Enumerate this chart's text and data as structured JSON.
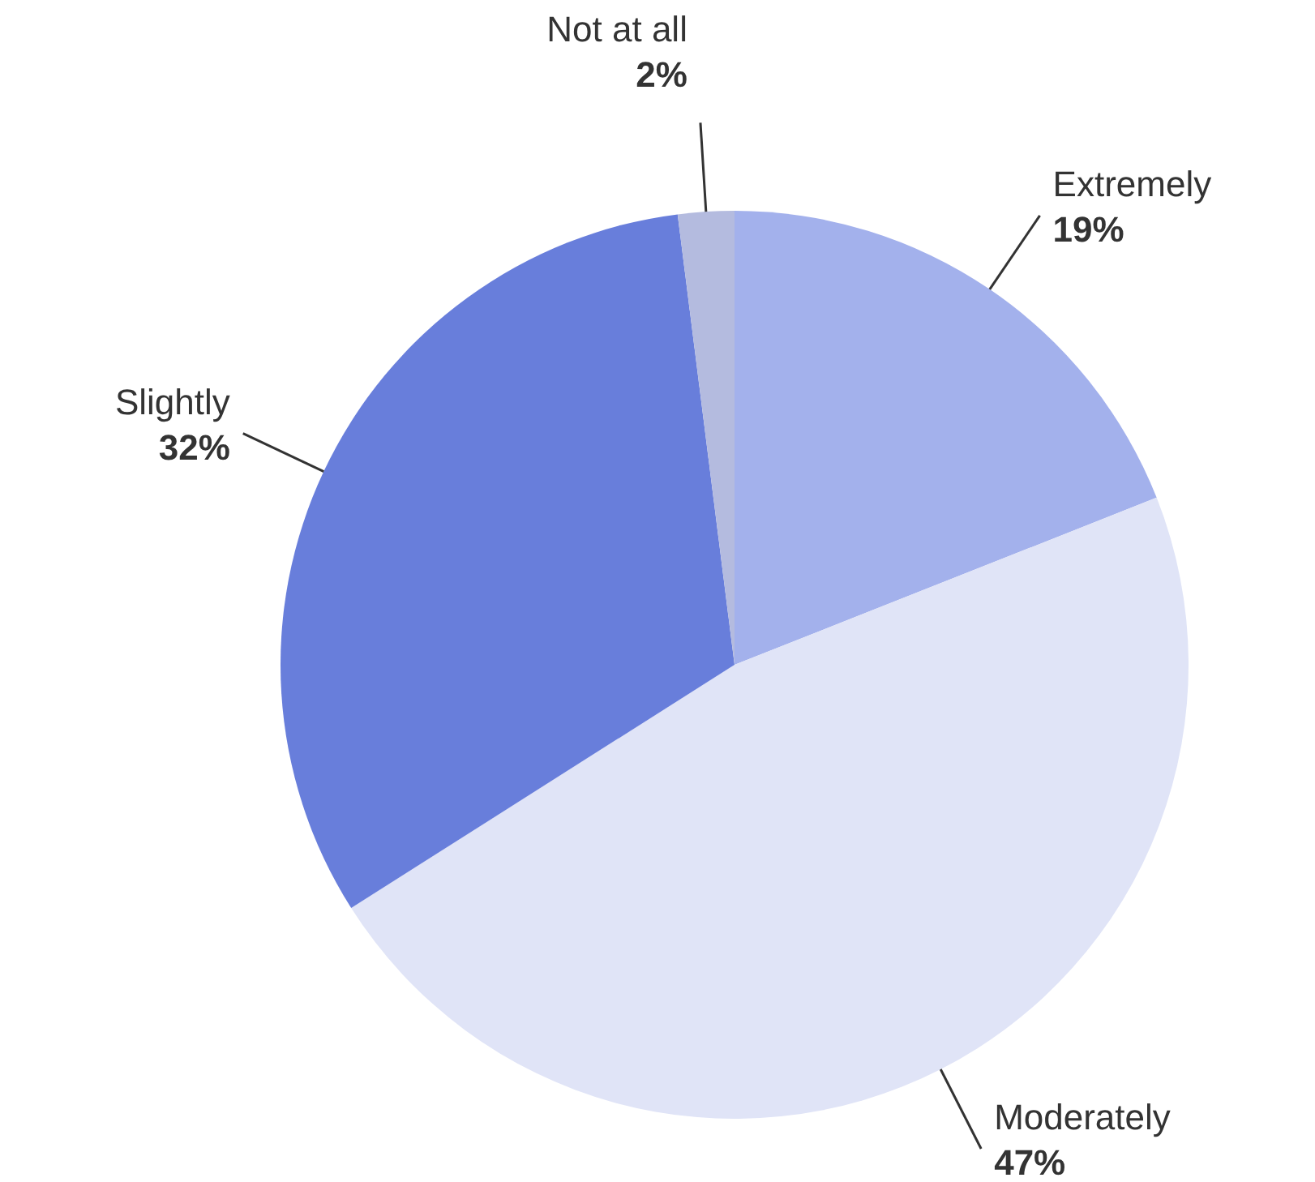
{
  "chart_data": {
    "type": "pie",
    "categories": [
      "Extremely",
      "Moderately",
      "Slightly",
      "Not at all"
    ],
    "values": [
      19,
      47,
      32,
      2
    ],
    "value_labels": [
      "19%",
      "47%",
      "32%",
      "2%"
    ],
    "colors": [
      "#a3b1ec",
      "#e0e4f7",
      "#687edb",
      "#b4bbdf"
    ]
  }
}
